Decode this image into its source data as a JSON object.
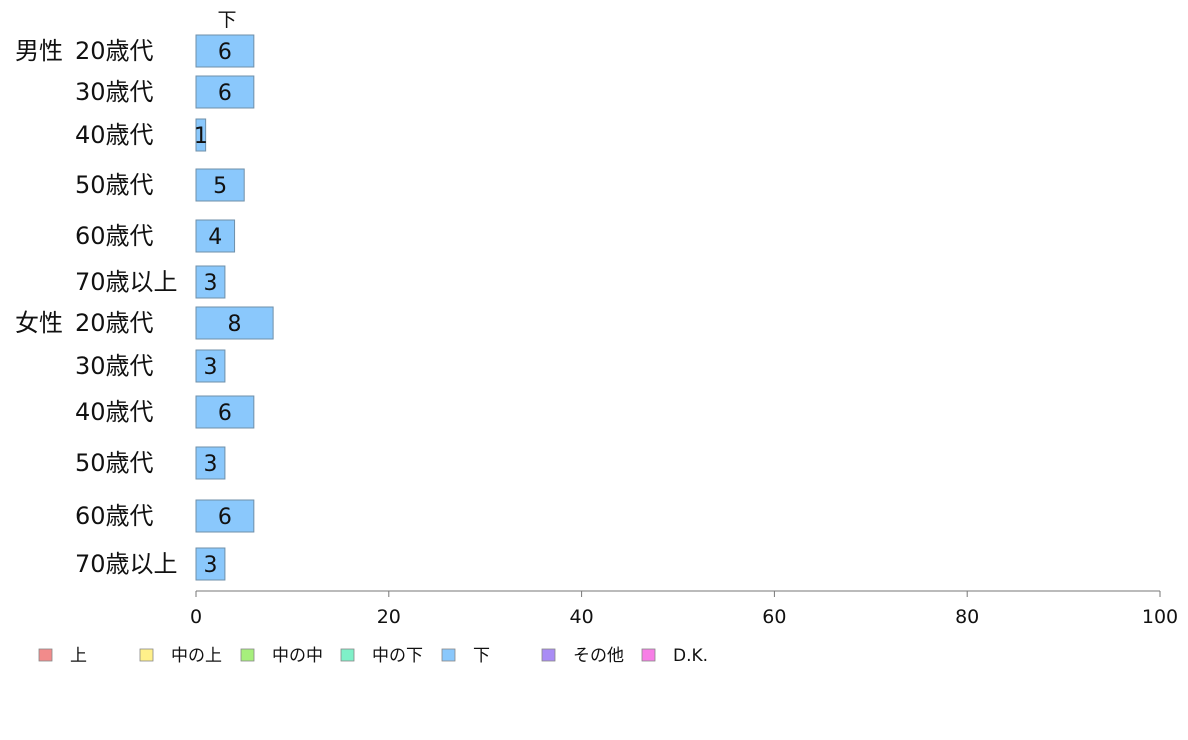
{
  "chart_data": {
    "type": "bar",
    "orientation": "horizontal",
    "stacked": true,
    "title": "",
    "xlabel": "",
    "ylabel": "",
    "xlim": [
      0,
      100
    ],
    "x_ticks": [
      "0",
      "20",
      "40",
      "60",
      "80",
      "100"
    ],
    "grid": false,
    "legend_position": "bottom",
    "column_header": "下",
    "groups": [
      {
        "label": "男性",
        "rows": [
          {
            "label": "20歳代",
            "values": {
              "下": 6
            }
          },
          {
            "label": "30歳代",
            "values": {
              "下": 6
            }
          },
          {
            "label": "40歳代",
            "values": {
              "下": 1
            }
          },
          {
            "label": "50歳代",
            "values": {
              "下": 5
            }
          },
          {
            "label": "60歳代",
            "values": {
              "下": 4
            }
          },
          {
            "label": "70歳以上",
            "values": {
              "下": 3
            }
          }
        ]
      },
      {
        "label": "女性",
        "rows": [
          {
            "label": "20歳代",
            "values": {
              "下": 8
            }
          },
          {
            "label": "30歳代",
            "values": {
              "下": 3
            }
          },
          {
            "label": "40歳代",
            "values": {
              "下": 6
            }
          },
          {
            "label": "50歳代",
            "values": {
              "下": 3
            }
          },
          {
            "label": "60歳代",
            "values": {
              "下": 6
            }
          },
          {
            "label": "70歳以上",
            "values": {
              "下": 3
            }
          }
        ]
      }
    ],
    "series": [
      {
        "name": "上",
        "color": "#f28b8b"
      },
      {
        "name": "中の上",
        "color": "#fff08a"
      },
      {
        "name": "中の中",
        "color": "#a6ef7c"
      },
      {
        "name": "中の下",
        "color": "#7ff0c8"
      },
      {
        "name": "下",
        "color": "#8ac8fc"
      },
      {
        "name": "その他",
        "color": "#a98cf5"
      },
      {
        "name": "D.K.",
        "color": "#f77ee6"
      }
    ]
  }
}
